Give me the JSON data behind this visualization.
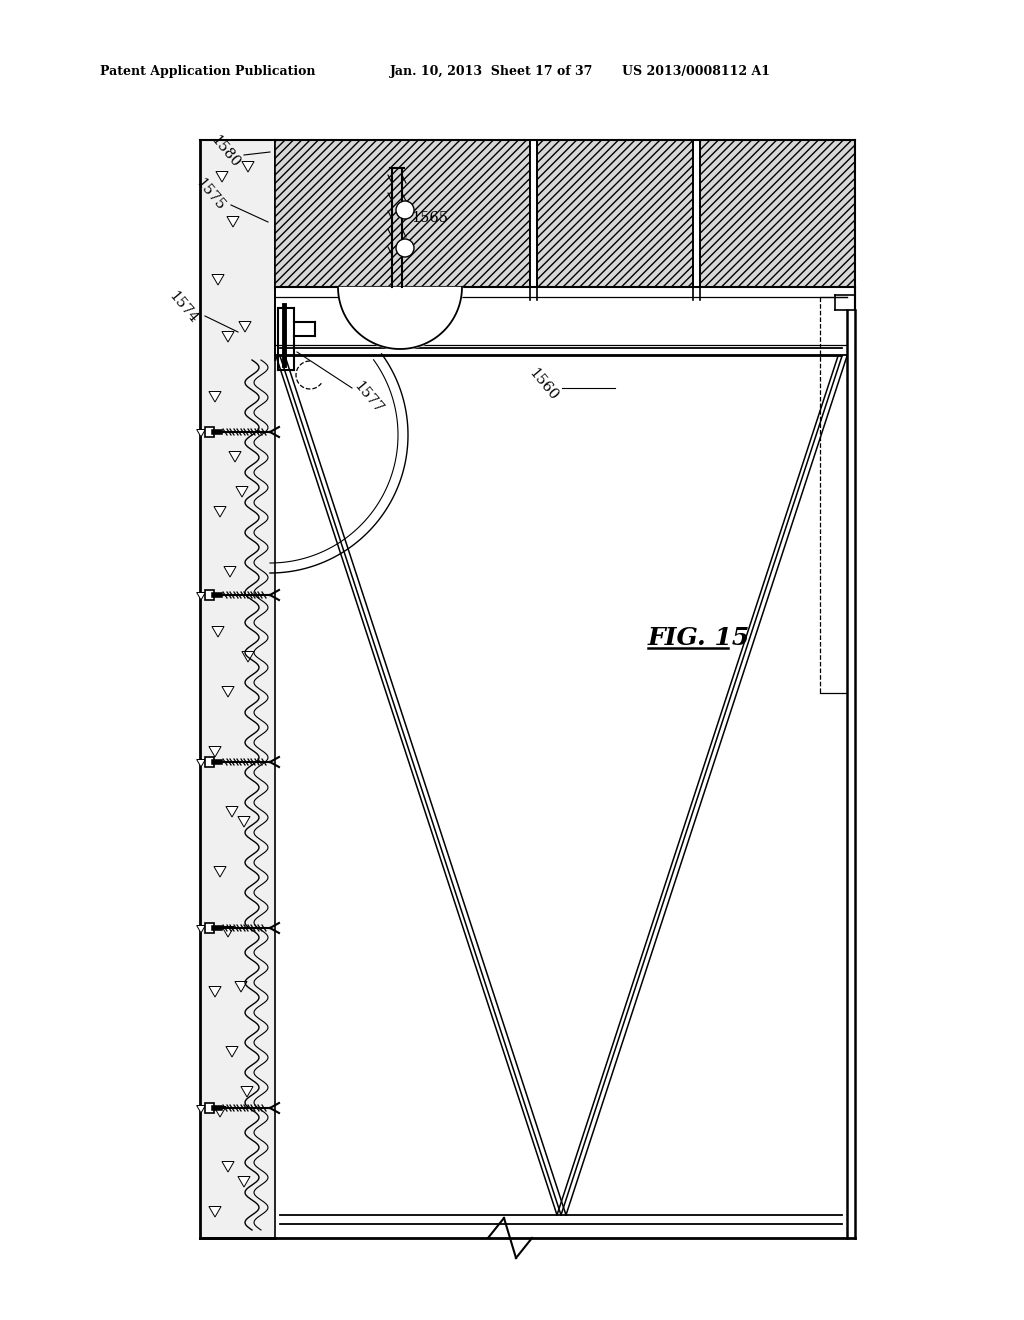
{
  "bg_color": "#ffffff",
  "line_color": "#000000",
  "header_left": "Patent Application Publication",
  "header_mid": "Jan. 10, 2013  Sheet 17 of 37",
  "header_right": "US 2013/0008112 A1",
  "fig_label": "FIG. 15",
  "ref_labels": [
    "1580",
    "1575",
    "1574",
    "1565",
    "1577",
    "1560"
  ],
  "hatch_density": "////",
  "gray_fill": "#d8d8d8",
  "light_gray": "#f0f0f0"
}
